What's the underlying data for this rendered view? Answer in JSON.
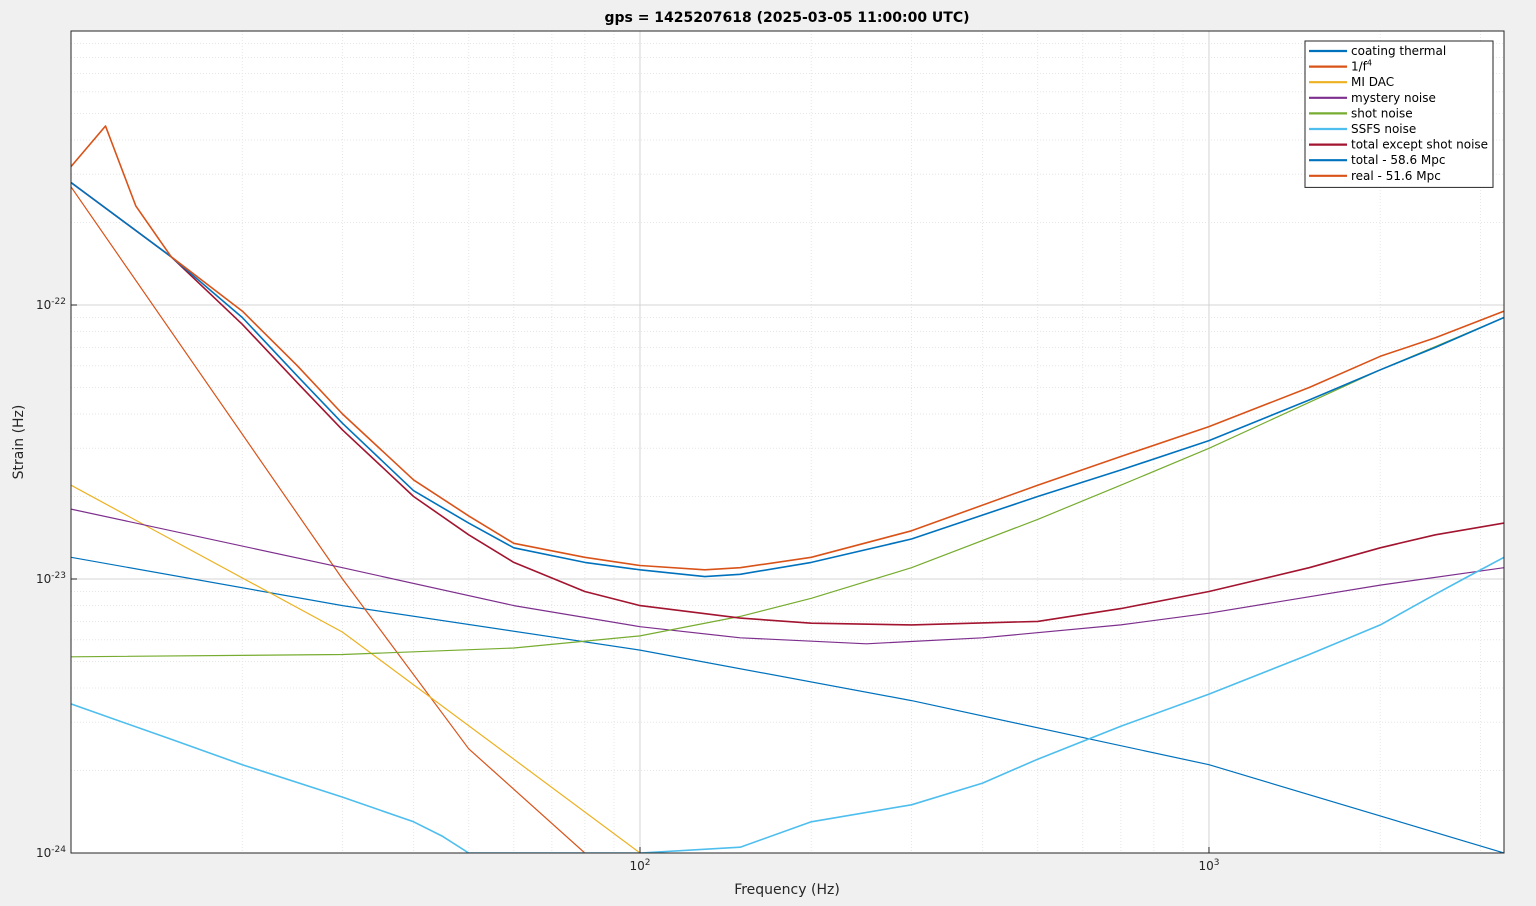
{
  "chart_data": {
    "type": "line",
    "title": "gps = 1425207618 (2025-03-05 11:00:00 UTC)",
    "xlabel": "Frequency (Hz)",
    "ylabel": "Strain (Hz)",
    "x_scale": "log",
    "y_scale": "log",
    "xlim": [
      10,
      3300
    ],
    "ylim": [
      1e-24,
      1e-21
    ],
    "grid": true,
    "minor_grid": true,
    "legend_position": "top-right",
    "x_ticks": [
      {
        "value": 100,
        "base": "10",
        "exp": "2"
      },
      {
        "value": 1000,
        "base": "10",
        "exp": "3"
      }
    ],
    "y_ticks": [
      {
        "value": 1e-24,
        "base": "10",
        "exp": "-24"
      },
      {
        "value": 1e-23,
        "base": "10",
        "exp": "-23"
      },
      {
        "value": 1e-22,
        "base": "10",
        "exp": "-22"
      }
    ],
    "series": [
      {
        "name": "coating thermal",
        "color": "#0072BD",
        "x": [
          10,
          30,
          100,
          300,
          1000,
          3300
        ],
        "y": [
          1.2e-23,
          8e-24,
          5.5e-24,
          3.6e-24,
          2.1e-24,
          1e-24
        ]
      },
      {
        "name": "1/f",
        "name_sup": "4",
        "color": "#D95319",
        "x": [
          10,
          30,
          50,
          80
        ],
        "y": [
          2.7e-22,
          1e-23,
          2.4e-24,
          1e-24
        ]
      },
      {
        "name": "MI DAC",
        "color": "#EDB120",
        "x": [
          10,
          30,
          60,
          100
        ],
        "y": [
          2.2e-23,
          6.4e-24,
          2.2e-24,
          1e-24
        ]
      },
      {
        "name": "mystery noise",
        "color": "#7E2F8E",
        "x": [
          10,
          30,
          60,
          100,
          150,
          250,
          400,
          700,
          1000,
          2000,
          3300
        ],
        "y": [
          1.8e-23,
          1.1e-23,
          8e-24,
          6.7e-24,
          6.1e-24,
          5.8e-24,
          6.1e-24,
          6.8e-24,
          7.5e-24,
          9.5e-24,
          1.1e-23
        ]
      },
      {
        "name": "shot noise",
        "color": "#77AC30",
        "x": [
          10,
          30,
          60,
          100,
          150,
          200,
          300,
          500,
          700,
          1000,
          2000,
          3300
        ],
        "y": [
          5.2e-24,
          5.3e-24,
          5.6e-24,
          6.2e-24,
          7.3e-24,
          8.5e-24,
          1.1e-23,
          1.65e-23,
          2.2e-23,
          3e-23,
          5.8e-23,
          9e-23
        ]
      },
      {
        "name": "SSFS noise",
        "color": "#4DBEEE",
        "x": [
          10,
          15,
          20,
          30,
          40,
          45,
          50,
          100,
          150,
          200,
          300,
          400,
          500,
          700,
          1000,
          1500,
          2000,
          2500,
          2800,
          3300
        ],
        "y": [
          3.5e-24,
          2.6e-24,
          2.1e-24,
          1.6e-24,
          1.3e-24,
          1.15e-24,
          1e-24,
          1e-24,
          1.05e-24,
          1.3e-24,
          1.5e-24,
          1.8e-24,
          2.2e-24,
          2.9e-24,
          3.8e-24,
          5.3e-24,
          6.8e-24,
          8.8e-24,
          1e-23,
          1.2e-23
        ]
      },
      {
        "name": "total except shot noise",
        "color": "#A2142F",
        "x": [
          10,
          15,
          20,
          25,
          30,
          40,
          50,
          60,
          80,
          100,
          150,
          200,
          300,
          500,
          700,
          1000,
          1500,
          2000,
          2500,
          3300
        ],
        "y": [
          2.8e-22,
          1.5e-22,
          8.5e-23,
          5.2e-23,
          3.5e-23,
          2e-23,
          1.45e-23,
          1.15e-23,
          9e-24,
          8e-24,
          7.2e-24,
          6.9e-24,
          6.8e-24,
          7e-24,
          7.8e-24,
          9e-24,
          1.1e-23,
          1.3e-23,
          1.45e-23,
          1.6e-23
        ]
      },
      {
        "name": "total - 58.6 Mpc",
        "color": "#0072BD",
        "x": [
          10,
          15,
          20,
          25,
          30,
          40,
          50,
          60,
          80,
          100,
          130,
          150,
          200,
          300,
          500,
          700,
          1000,
          1500,
          2000,
          2500,
          3300
        ],
        "y": [
          2.8e-22,
          1.5e-22,
          9e-23,
          5.5e-23,
          3.7e-23,
          2.1e-23,
          1.6e-23,
          1.3e-23,
          1.15e-23,
          1.08e-23,
          1.02e-23,
          1.04e-23,
          1.15e-23,
          1.4e-23,
          2e-23,
          2.5e-23,
          3.2e-23,
          4.5e-23,
          5.8e-23,
          7e-23,
          9e-23
        ]
      },
      {
        "name": "real - 51.6 Mpc",
        "color": "#D95319",
        "x": [
          10,
          11.5,
          13,
          15,
          20,
          25,
          30,
          40,
          50,
          60,
          80,
          100,
          130,
          150,
          200,
          300,
          500,
          700,
          1000,
          1500,
          2000,
          2500,
          3300
        ],
        "y": [
          3.2e-22,
          4.5e-22,
          2.3e-22,
          1.5e-22,
          9.5e-23,
          6e-23,
          4e-23,
          2.3e-23,
          1.7e-23,
          1.35e-23,
          1.2e-23,
          1.12e-23,
          1.08e-23,
          1.1e-23,
          1.2e-23,
          1.5e-23,
          2.2e-23,
          2.8e-23,
          3.6e-23,
          5e-23,
          6.5e-23,
          7.6e-23,
          9.5e-23
        ]
      }
    ]
  }
}
